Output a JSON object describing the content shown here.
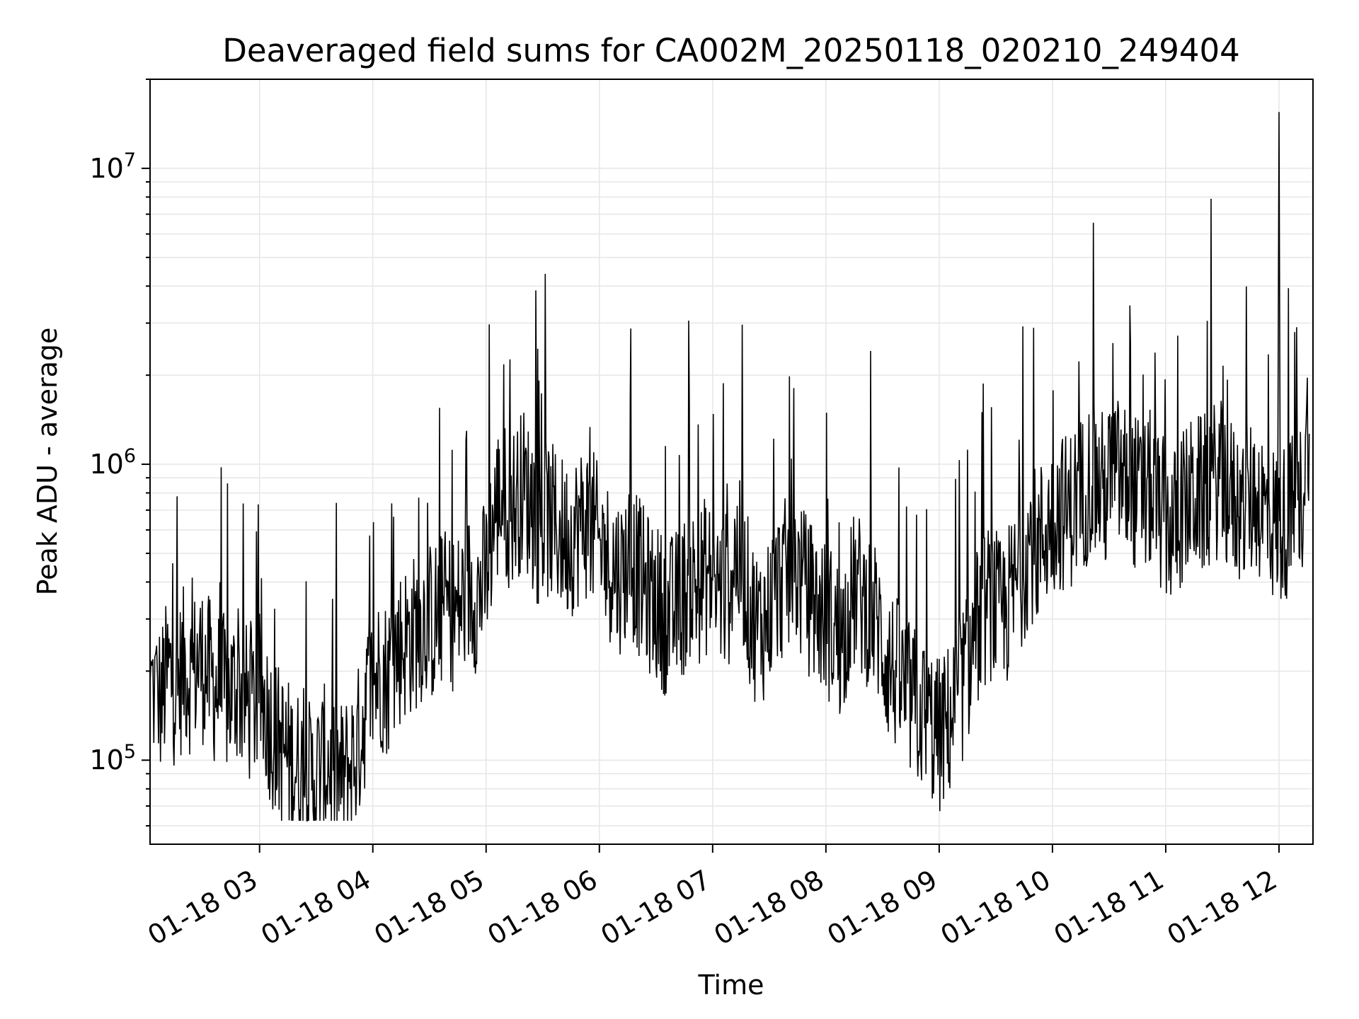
{
  "chart_data": {
    "type": "line",
    "title": "Deaveraged field sums for CA002M_20250118_020210_249404",
    "xlabel": "Time",
    "ylabel": "Peak ADU - average",
    "yscale": "log",
    "xlim": [
      "2025-01-18 02:02",
      "2025-01-18 12:18"
    ],
    "ylim": [
      52000,
      20000000
    ],
    "grid": true,
    "line_color": "#000000",
    "grid_color": "#e6e6e6",
    "x_ticks": [
      {
        "value": "2025-01-18 03:00",
        "label": "01-18 03"
      },
      {
        "value": "2025-01-18 04:00",
        "label": "01-18 04"
      },
      {
        "value": "2025-01-18 05:00",
        "label": "01-18 05"
      },
      {
        "value": "2025-01-18 06:00",
        "label": "01-18 06"
      },
      {
        "value": "2025-01-18 07:00",
        "label": "01-18 07"
      },
      {
        "value": "2025-01-18 08:00",
        "label": "01-18 08"
      },
      {
        "value": "2025-01-18 09:00",
        "label": "01-18 09"
      },
      {
        "value": "2025-01-18 10:00",
        "label": "01-18 10"
      },
      {
        "value": "2025-01-18 11:00",
        "label": "01-18 11"
      },
      {
        "value": "2025-01-18 12:00",
        "label": "01-18 12"
      }
    ],
    "y_ticks": [
      {
        "value": 100000,
        "base": "10",
        "exp": "5"
      },
      {
        "value": 1000000,
        "base": "10",
        "exp": "6"
      },
      {
        "value": 10000000,
        "base": "10",
        "exp": "7"
      }
    ],
    "series": [
      {
        "x": [
          "2025-01-18 02:02",
          "2025-01-18 02:08",
          "2025-01-18 02:12",
          "2025-01-18 02:16",
          "2025-01-18 02:20",
          "2025-01-18 02:24",
          "2025-01-18 02:28",
          "2025-01-18 02:32",
          "2025-01-18 02:36",
          "2025-01-18 02:40",
          "2025-01-18 02:44",
          "2025-01-18 02:48",
          "2025-01-18 02:52",
          "2025-01-18 02:56",
          "2025-01-18 03:00",
          "2025-01-18 03:04",
          "2025-01-18 03:08",
          "2025-01-18 03:12",
          "2025-01-18 03:16",
          "2025-01-18 03:20",
          "2025-01-18 03:24",
          "2025-01-18 03:28",
          "2025-01-18 03:32",
          "2025-01-18 03:36",
          "2025-01-18 03:40",
          "2025-01-18 03:44",
          "2025-01-18 03:48",
          "2025-01-18 03:52",
          "2025-01-18 03:56",
          "2025-01-18 04:00",
          "2025-01-18 04:04",
          "2025-01-18 04:08",
          "2025-01-18 04:12",
          "2025-01-18 04:16",
          "2025-01-18 04:20",
          "2025-01-18 04:24",
          "2025-01-18 04:28",
          "2025-01-18 04:32",
          "2025-01-18 04:36",
          "2025-01-18 04:40",
          "2025-01-18 04:44",
          "2025-01-18 04:48",
          "2025-01-18 04:52",
          "2025-01-18 04:56",
          "2025-01-18 05:00",
          "2025-01-18 05:04",
          "2025-01-18 05:08",
          "2025-01-18 05:12",
          "2025-01-18 05:16",
          "2025-01-18 05:20",
          "2025-01-18 05:24",
          "2025-01-18 05:28",
          "2025-01-18 05:32",
          "2025-01-18 05:36",
          "2025-01-18 05:40",
          "2025-01-18 05:44",
          "2025-01-18 05:48",
          "2025-01-18 05:52",
          "2025-01-18 05:56",
          "2025-01-18 06:00",
          "2025-01-18 06:04",
          "2025-01-18 06:08",
          "2025-01-18 06:12",
          "2025-01-18 06:16",
          "2025-01-18 06:20",
          "2025-01-18 06:24",
          "2025-01-18 06:28",
          "2025-01-18 06:32",
          "2025-01-18 06:36",
          "2025-01-18 06:40",
          "2025-01-18 06:44",
          "2025-01-18 06:48",
          "2025-01-18 06:52",
          "2025-01-18 06:56",
          "2025-01-18 07:00",
          "2025-01-18 07:04",
          "2025-01-18 07:08",
          "2025-01-18 07:12",
          "2025-01-18 07:16",
          "2025-01-18 07:20",
          "2025-01-18 07:24",
          "2025-01-18 07:28",
          "2025-01-18 07:32",
          "2025-01-18 07:36",
          "2025-01-18 07:40",
          "2025-01-18 07:44",
          "2025-01-18 07:48",
          "2025-01-18 07:52",
          "2025-01-18 07:56",
          "2025-01-18 08:00",
          "2025-01-18 08:04",
          "2025-01-18 08:08",
          "2025-01-18 08:12",
          "2025-01-18 08:16",
          "2025-01-18 08:20",
          "2025-01-18 08:24",
          "2025-01-18 08:28",
          "2025-01-18 08:32",
          "2025-01-18 08:36",
          "2025-01-18 08:40",
          "2025-01-18 08:44",
          "2025-01-18 08:48",
          "2025-01-18 08:52",
          "2025-01-18 08:56",
          "2025-01-18 09:00",
          "2025-01-18 09:04",
          "2025-01-18 09:08",
          "2025-01-18 09:12",
          "2025-01-18 09:16",
          "2025-01-18 09:20",
          "2025-01-18 09:24",
          "2025-01-18 09:28",
          "2025-01-18 09:32",
          "2025-01-18 09:36",
          "2025-01-18 09:40",
          "2025-01-18 09:44",
          "2025-01-18 09:48",
          "2025-01-18 09:52",
          "2025-01-18 09:56",
          "2025-01-18 10:00",
          "2025-01-18 10:04",
          "2025-01-18 10:08",
          "2025-01-18 10:12",
          "2025-01-18 10:16",
          "2025-01-18 10:20",
          "2025-01-18 10:24",
          "2025-01-18 10:28",
          "2025-01-18 10:32",
          "2025-01-18 10:36",
          "2025-01-18 10:40",
          "2025-01-18 10:44",
          "2025-01-18 10:48",
          "2025-01-18 10:52",
          "2025-01-18 10:56",
          "2025-01-18 11:00",
          "2025-01-18 11:04",
          "2025-01-18 11:08",
          "2025-01-18 11:12",
          "2025-01-18 11:16",
          "2025-01-18 11:20",
          "2025-01-18 11:24",
          "2025-01-18 11:28",
          "2025-01-18 11:32",
          "2025-01-18 11:36",
          "2025-01-18 11:40",
          "2025-01-18 11:44",
          "2025-01-18 11:48",
          "2025-01-18 11:52",
          "2025-01-18 11:56",
          "2025-01-18 12:00",
          "2025-01-18 12:04",
          "2025-01-18 12:08",
          "2025-01-18 12:12",
          "2025-01-18 12:16"
        ],
        "y": [
          180000,
          160000,
          200000,
          170000,
          210000,
          190000,
          220000,
          200000,
          180000,
          170000,
          165000,
          180000,
          160000,
          150000,
          170000,
          145000,
          120000,
          110000,
          100000,
          95000,
          88000,
          85000,
          92000,
          100000,
          90000,
          85000,
          95000,
          110000,
          150000,
          180000,
          200000,
          190000,
          230000,
          250000,
          260000,
          280000,
          300000,
          290000,
          320000,
          330000,
          310000,
          350000,
          380000,
          360000,
          420000,
          650000,
          800000,
          700000,
          750000,
          850000,
          700000,
          600000,
          650000,
          620000,
          580000,
          560000,
          600000,
          650000,
          620000,
          520000,
          480000,
          450000,
          420000,
          500000,
          430000,
          380000,
          350000,
          330000,
          300000,
          320000,
          350000,
          400000,
          380000,
          420000,
          400000,
          380000,
          370000,
          500000,
          450000,
          320000,
          280000,
          300000,
          350000,
          400000,
          420000,
          450000,
          380000,
          350000,
          320000,
          300000,
          280000,
          250000,
          330000,
          380000,
          340000,
          320000,
          280000,
          220000,
          200000,
          180000,
          160000,
          150000,
          140000,
          130000,
          120000,
          130000,
          150000,
          180000,
          220000,
          280000,
          320000,
          350000,
          300000,
          330000,
          380000,
          450000,
          550000,
          520000,
          600000,
          650000,
          700000,
          680000,
          750000,
          800000,
          900000,
          850000,
          800000,
          950000,
          900000,
          850000,
          800000,
          750000,
          820000,
          700000,
          650000,
          600000,
          700000,
          750000,
          800000,
          780000,
          850000,
          900000,
          820000,
          750000,
          700000,
          750000,
          800000,
          700000,
          650000,
          600000,
          650000,
          700000,
          750000,
          1500000
        ]
      }
    ]
  }
}
